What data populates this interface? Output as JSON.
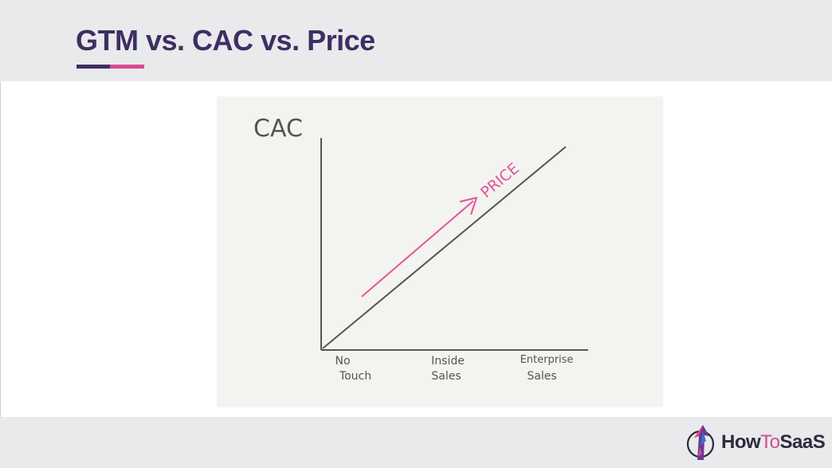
{
  "header": {
    "title": "GTM vs. CAC vs. Price"
  },
  "diagram": {
    "y_axis_label": "CAC",
    "arrow_label": "PRICE",
    "x_categories": [
      {
        "line1": "No",
        "line2": "Touch"
      },
      {
        "line1": "Inside",
        "line2": "Sales"
      },
      {
        "line1": "Enterprise",
        "line2": "Sales"
      }
    ],
    "colors": {
      "line": "#555555",
      "arrow": "#e0559a"
    }
  },
  "footer": {
    "logo": {
      "part1": "How",
      "part2": "To",
      "part3": "SaaS",
      "icon": "rocket-arrow-icon"
    }
  },
  "colors": {
    "title": "#3f2e63",
    "accent": "#d94a92",
    "band": "#e9eaec"
  }
}
